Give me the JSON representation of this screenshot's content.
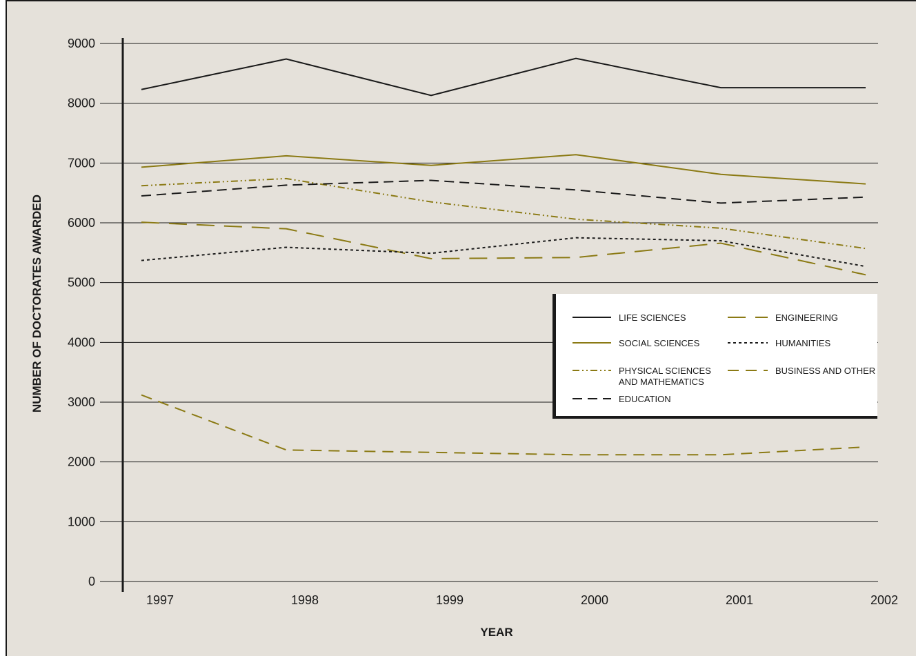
{
  "chart_data": {
    "type": "line",
    "title": "",
    "xlabel": "YEAR",
    "ylabel": "NUMBER OF DOCTORATES AWARDED",
    "x": [
      "1997",
      "1998",
      "1999",
      "2000",
      "2001",
      "2002"
    ],
    "ylim": [
      0,
      9000
    ],
    "yticks": [
      "0",
      "1000",
      "2000",
      "3000",
      "4000",
      "5000",
      "6000",
      "7000",
      "8000",
      "9000"
    ],
    "grid": true,
    "legend_position": "right",
    "series": [
      {
        "name": "LIFE SCIENCES",
        "values": [
          8230,
          8740,
          8130,
          8750,
          8260,
          8260
        ],
        "color": "#1a1a1a",
        "dash": "none"
      },
      {
        "name": "SOCIAL SCIENCES",
        "values": [
          6930,
          7120,
          6960,
          7140,
          6810,
          6650
        ],
        "color": "#8b7a14",
        "dash": "none"
      },
      {
        "name": "PHYSICAL SCIENCES AND MATHEMATICS",
        "name_lines": [
          "PHYSICAL SCIENCES",
          "AND MATHEMATICS"
        ],
        "values": [
          6620,
          6740,
          6350,
          6060,
          5910,
          5570
        ],
        "color": "#8b7a14",
        "dash": "dashdotdot"
      },
      {
        "name": "EDUCATION",
        "values": [
          6450,
          6630,
          6710,
          6550,
          6330,
          6430
        ],
        "color": "#1a1a1a",
        "dash": "dash"
      },
      {
        "name": "ENGINEERING",
        "values": [
          6010,
          5900,
          5400,
          5420,
          5660,
          5130
        ],
        "color": "#8b7a14",
        "dash": "longdash"
      },
      {
        "name": "HUMANITIES",
        "values": [
          5370,
          5590,
          5490,
          5750,
          5700,
          5270
        ],
        "color": "#1a1a1a",
        "dash": "dot"
      },
      {
        "name": "BUSINESS AND OTHER",
        "values": [
          3120,
          2200,
          2160,
          2120,
          2120,
          2250
        ],
        "color": "#8b7a14",
        "dash": "mediumdash"
      }
    ]
  }
}
